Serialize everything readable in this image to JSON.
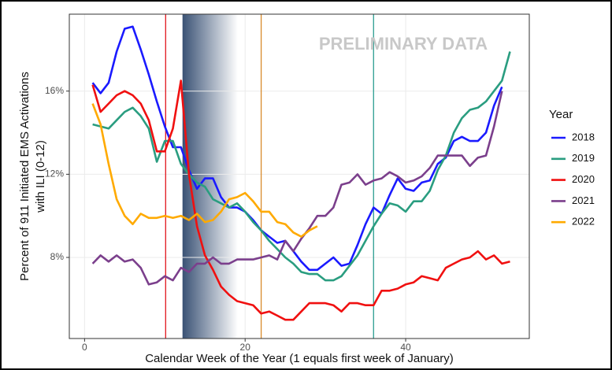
{
  "chart_data": {
    "type": "line",
    "annotation": "PRELIMINARY DATA",
    "x_label": "Calendar Week of the Year (1 equals first week of January)",
    "y_label": [
      "Percent of 911 Initiated EMS Activations",
      "with ILI (0-12)"
    ],
    "legend_title": "Year",
    "legend_position": "right",
    "x": [
      1,
      2,
      3,
      4,
      5,
      6,
      7,
      8,
      9,
      10,
      11,
      12,
      13,
      14,
      15,
      16,
      17,
      18,
      19,
      20,
      21,
      22,
      23,
      24,
      25,
      26,
      27,
      28,
      29,
      30,
      31,
      32,
      33,
      34,
      35,
      36,
      37,
      38,
      39,
      40,
      41,
      42,
      43,
      44,
      45,
      46,
      47,
      48,
      49,
      50,
      51,
      52,
      53
    ],
    "xlim": [
      -1.9,
      55.4
    ],
    "xticks": [
      0,
      20,
      40
    ],
    "ylim": [
      4.1,
      19.7
    ],
    "yticks": [
      {
        "value": 8,
        "label": "8%"
      },
      {
        "value": 12,
        "label": "12%"
      },
      {
        "value": 16,
        "label": "16%"
      }
    ],
    "grid": true,
    "shaded_span": [
      12.2,
      19.1
    ],
    "reference_lines": [
      {
        "x": 10.1,
        "color": "#e0141c"
      },
      {
        "x": 22,
        "color": "#d98a2b"
      },
      {
        "x": 36,
        "color": "#2a9d8f"
      }
    ],
    "series": [
      {
        "name": "2018",
        "color": "#1a1aff",
        "values": [
          16.4,
          15.9,
          16.4,
          17.9,
          19.0,
          19.1,
          18.0,
          16.8,
          15.5,
          14.3,
          13.3,
          13.3,
          12.2,
          11.3,
          11.8,
          11.8,
          10.9,
          10.4,
          10.4,
          10.2,
          9.8,
          9.3,
          9.0,
          8.7,
          8.8,
          8.3,
          7.8,
          7.4,
          7.4,
          7.7,
          8.0,
          7.6,
          7.7,
          8.6,
          9.6,
          10.4,
          10.1,
          11.0,
          11.8,
          11.3,
          11.2,
          11.6,
          11.7,
          12.5,
          12.8,
          13.6,
          13.8,
          13.6,
          13.6,
          14.0,
          15.3,
          16.2,
          null
        ]
      },
      {
        "name": "2019",
        "color": "#2a9d80",
        "values": [
          14.4,
          14.3,
          14.2,
          14.6,
          15.0,
          15.2,
          14.8,
          14.2,
          12.6,
          13.6,
          13.6,
          12.5,
          12.0,
          11.6,
          11.4,
          10.8,
          10.6,
          10.4,
          10.6,
          10.2,
          9.7,
          9.3,
          8.8,
          8.4,
          8.0,
          7.7,
          7.3,
          7.2,
          7.2,
          6.9,
          6.9,
          7.1,
          7.6,
          8.1,
          8.8,
          9.5,
          10.1,
          10.6,
          10.5,
          10.2,
          10.7,
          10.7,
          11.2,
          12.2,
          12.9,
          14.0,
          14.7,
          15.1,
          15.2,
          15.5,
          16.0,
          16.5,
          17.9
        ]
      },
      {
        "name": "2020",
        "color": "#f01010",
        "values": [
          16.3,
          15.0,
          15.4,
          15.8,
          16.0,
          15.8,
          15.4,
          14.6,
          13.1,
          13.1,
          14.2,
          16.5,
          12.0,
          9.5,
          8.1,
          7.4,
          6.6,
          6.2,
          5.9,
          5.8,
          5.7,
          5.3,
          5.4,
          5.2,
          5.0,
          5.0,
          5.4,
          5.8,
          5.8,
          5.8,
          5.7,
          5.4,
          5.8,
          5.8,
          5.7,
          5.7,
          6.4,
          6.4,
          6.5,
          6.7,
          6.8,
          7.1,
          7.0,
          6.9,
          7.5,
          7.7,
          7.9,
          8.0,
          8.3,
          7.9,
          8.1,
          7.7,
          7.8
        ]
      },
      {
        "name": "2021",
        "color": "#7b3f8c",
        "values": [
          7.7,
          8.1,
          7.8,
          8.1,
          7.8,
          7.9,
          7.5,
          6.7,
          6.8,
          7.1,
          6.9,
          7.5,
          7.3,
          7.7,
          7.7,
          8.0,
          7.7,
          7.7,
          7.9,
          7.9,
          7.9,
          8.0,
          8.1,
          7.9,
          8.8,
          8.3,
          8.9,
          9.4,
          10.0,
          10.0,
          10.4,
          11.5,
          11.6,
          12.0,
          11.5,
          11.7,
          11.8,
          12.1,
          11.9,
          11.6,
          11.7,
          11.9,
          12.3,
          12.9,
          12.9,
          12.9,
          12.9,
          12.4,
          12.8,
          12.9,
          14.3,
          16.0,
          null
        ]
      },
      {
        "name": "2022",
        "color": "#ffaa00",
        "values": [
          15.4,
          14.4,
          12.5,
          10.8,
          10.0,
          9.6,
          10.1,
          9.9,
          9.9,
          10.0,
          9.9,
          10.0,
          9.8,
          10.1,
          9.7,
          9.8,
          10.2,
          10.8,
          10.9,
          11.1,
          10.7,
          10.2,
          10.2,
          9.7,
          9.6,
          9.2,
          9.0,
          9.3,
          9.5,
          null,
          null,
          null,
          null,
          null,
          null,
          null,
          null,
          null,
          null,
          null,
          null,
          null,
          null,
          null,
          null,
          null,
          null,
          null,
          null,
          null,
          null,
          null,
          null
        ]
      }
    ]
  }
}
